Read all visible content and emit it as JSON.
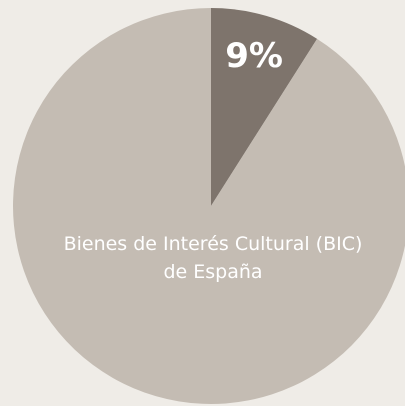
{
  "chart_data": {
    "type": "pie",
    "categories": [
      null,
      "Bienes de Interés Cultural (BIC) de España"
    ],
    "values": [
      9,
      91
    ],
    "value_labels": [
      "9%",
      null
    ],
    "colors": [
      "#7e746c",
      "#c4bcb3"
    ]
  }
}
